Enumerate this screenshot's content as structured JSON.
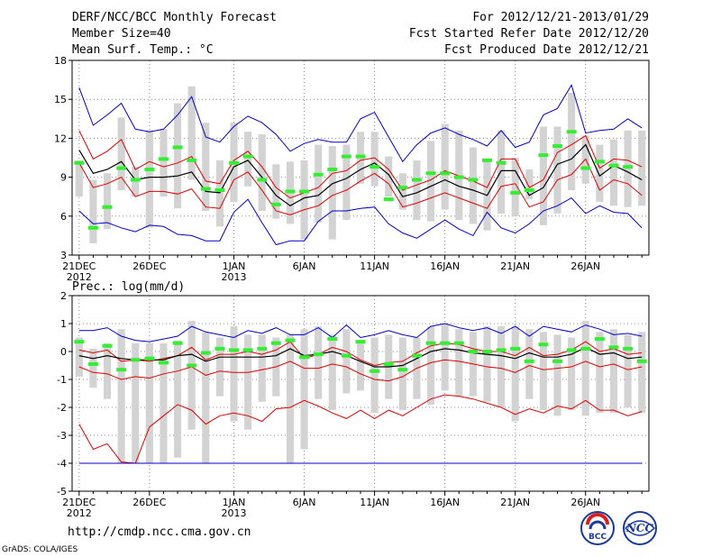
{
  "header": {
    "title": "DERF/NCC/BCC Monthly Forecast",
    "member_size": "Member Size=40",
    "variable": "Mean Surf. Temp.: °C",
    "for_range": "For 2012/12/21-2013/01/29",
    "fcst_started": "Fcst Started Refer Date 2012/12/20",
    "fcst_produced": "Fcst Produced Date 2012/12/21"
  },
  "footer": {
    "url": "http://cmdp.ncc.cma.gov.cn",
    "grads": "GrADS: COLA/IGES",
    "logo_bcc": "BCC",
    "logo_ncc": "NCC"
  },
  "colors": {
    "max": "#0000cc",
    "min": "#0000cc",
    "p_hi": "#dd0000",
    "p_lo": "#dd0000",
    "mean": "#000000",
    "box": "#d3d3d3",
    "obs": "#33ee33",
    "grid": "#888888"
  },
  "chart_data": [
    {
      "type": "line",
      "title": "",
      "ylabel": "Mean Surf. Temp.: °C",
      "ylim": [
        3,
        18
      ],
      "yticks": [
        3,
        6,
        9,
        12,
        15,
        18
      ],
      "ytick_labels": [
        "3",
        "6",
        "9",
        "12",
        "15",
        "18"
      ],
      "xlim": [
        0,
        40
      ],
      "xticks": [
        0,
        5,
        11,
        16,
        21,
        26,
        31,
        36
      ],
      "xtick_labels": [
        "21DEC",
        "26DEC",
        "1JAN",
        "6JAN",
        "11JAN",
        "16JAN",
        "21JAN",
        "26JAN"
      ],
      "xtick_sublabels": [
        "2012",
        "",
        "2013",
        "",
        "",
        "",
        "",
        ""
      ],
      "series": [
        {
          "name": "max",
          "values": [
            15.9,
            13,
            13.8,
            14.7,
            12.7,
            12.5,
            12.7,
            13.8,
            15.2,
            12.1,
            11.7,
            12.9,
            13.7,
            13.2,
            12.3,
            11,
            11.6,
            11.9,
            11.7,
            11.7,
            13.5,
            14,
            12.1,
            10.2,
            11.5,
            12.4,
            12.8,
            12.3,
            11.9,
            11.4,
            12.6,
            11.3,
            11.7,
            13.8,
            14.3,
            16.1,
            12.4,
            12.6,
            12.7,
            13.5,
            12.8
          ]
        },
        {
          "name": "p_hi",
          "values": [
            12.6,
            10.4,
            11,
            11.9,
            9.6,
            10.2,
            9.8,
            10.1,
            10.6,
            8.7,
            8.5,
            10.3,
            11,
            9.8,
            8.2,
            7.4,
            7.8,
            8.2,
            9.3,
            9.5,
            10.3,
            10.5,
            9.6,
            8,
            8.4,
            8.8,
            9.5,
            9.1,
            8.7,
            8.2,
            10.4,
            10.4,
            8.2,
            8.8,
            10.9,
            11.5,
            12.2,
            9.7,
            10.4,
            10.3,
            9.8
          ]
        },
        {
          "name": "mean",
          "values": [
            11.1,
            9.3,
            9.6,
            10.2,
            8.8,
            9,
            9,
            9.1,
            9.4,
            7.9,
            7.8,
            9.8,
            10.3,
            9,
            7.6,
            6.8,
            7.4,
            7.6,
            8.5,
            8.9,
            9.6,
            10.1,
            9.2,
            7.5,
            7.8,
            8.3,
            8.8,
            8.3,
            8,
            7.6,
            9.5,
            9.5,
            7.6,
            8.2,
            10,
            10.4,
            11.5,
            9.1,
            9.9,
            9.4,
            8.8
          ]
        },
        {
          "name": "p_lo",
          "values": [
            10.1,
            8.2,
            8.5,
            9,
            7.5,
            7.9,
            7.9,
            7.7,
            8.1,
            6.7,
            6.6,
            8.8,
            9.4,
            8,
            6.4,
            6.1,
            6.5,
            6.8,
            7.6,
            8,
            8.7,
            9.3,
            8.5,
            6.7,
            7,
            7.4,
            7.8,
            7.4,
            7,
            6.6,
            8.3,
            8.5,
            6.7,
            7.1,
            8.8,
            9.2,
            10.4,
            8,
            8.8,
            8.5,
            7.6
          ]
        },
        {
          "name": "min",
          "values": [
            6.4,
            5.4,
            5.5,
            5.1,
            4.8,
            5.3,
            5.2,
            4.6,
            4.5,
            4.1,
            4.1,
            6.3,
            7.3,
            5.5,
            3.8,
            4.1,
            4.1,
            5.6,
            6.4,
            6.4,
            6.6,
            6.7,
            5.4,
            4.7,
            4.3,
            5,
            5.7,
            5,
            4.5,
            6.3,
            5.1,
            4.7,
            5.4,
            6.4,
            6.8,
            7.4,
            6.2,
            6.8,
            6.3,
            6.2,
            5.1
          ]
        }
      ],
      "boxes": {
        "low": [
          7.5,
          3.9,
          5,
          8,
          7.5,
          5.1,
          7.5,
          6.6,
          8.8,
          6.4,
          5.2,
          7.1,
          8.3,
          6.4,
          5.8,
          5.4,
          4.2,
          5.5,
          4.2,
          5.7,
          8.5,
          8.3,
          7.5,
          6.5,
          5.7,
          5.6,
          6.5,
          5.7,
          5.4,
          4.9,
          6.2,
          6,
          7.3,
          5.3,
          6.2,
          8,
          8.5,
          7.1,
          6.8,
          6.7,
          6.8
        ],
        "high": [
          10.3,
          8.8,
          9.3,
          13.6,
          9.8,
          12.6,
          12.7,
          14.7,
          16,
          13.2,
          10.3,
          13.2,
          12.5,
          12.3,
          10,
          10.2,
          10.3,
          11.5,
          11.4,
          11.5,
          12.5,
          12.5,
          10.6,
          9.3,
          10.3,
          11.8,
          13.1,
          12.6,
          11.3,
          10.2,
          12.6,
          10.5,
          9.6,
          12.9,
          12.9,
          15.5,
          12.2,
          11.5,
          11.9,
          12.6,
          12.6
        ]
      },
      "observed": [
        10.1,
        5.1,
        6.7,
        9.7,
        8.8,
        9.6,
        10.4,
        11.3,
        10.3,
        8.1,
        8,
        10.1,
        10.6,
        8.8,
        6.9,
        7.9,
        7.9,
        9.2,
        9.6,
        10.6,
        10.6,
        9.8,
        7.3,
        8.2,
        8.8,
        9.3,
        9.3,
        9,
        8.8,
        10.3,
        10.1,
        7.8,
        8,
        10.7,
        11.4,
        12.5,
        9.7,
        10.2,
        9.9,
        9.8,
        null
      ]
    },
    {
      "type": "line",
      "title": "",
      "ylabel": "Prec.: log(mm/d)",
      "ylim": [
        -5,
        2
      ],
      "yticks": [
        -5,
        -4,
        -3,
        -2,
        -1,
        0,
        1,
        2
      ],
      "ytick_labels": [
        "-5",
        "-4",
        "-3",
        "-2",
        "-1",
        "0",
        "1",
        "2"
      ],
      "xlim": [
        0,
        40
      ],
      "xticks": [
        0,
        5,
        11,
        16,
        21,
        26,
        31,
        36
      ],
      "xtick_labels": [
        "21DEC",
        "26DEC",
        "1JAN",
        "6JAN",
        "11JAN",
        "16JAN",
        "21JAN",
        "26JAN"
      ],
      "xtick_sublabels": [
        "2012",
        "",
        "2013",
        "",
        "",
        "",
        "",
        ""
      ],
      "series": [
        {
          "name": "max",
          "values": [
            0.75,
            0.75,
            0.85,
            0.55,
            0.4,
            0.35,
            0.45,
            0.55,
            0.9,
            0.7,
            0.6,
            0.5,
            0.75,
            0.65,
            0.85,
            0.6,
            0.6,
            0.85,
            0.5,
            0.95,
            0.5,
            0.6,
            0.75,
            0.6,
            0.5,
            0.9,
            1,
            0.85,
            0.75,
            0.85,
            0.65,
            0.9,
            0.55,
            0.9,
            0.8,
            0.7,
            0.95,
            0.8,
            0.6,
            0.65,
            0.55
          ]
        },
        {
          "name": "p_hi",
          "values": [
            0.05,
            -0.05,
            0.05,
            -0.35,
            -0.3,
            -0.35,
            -0.25,
            -0.15,
            0.15,
            -0.3,
            -0.1,
            -0.1,
            0,
            -0.1,
            0.05,
            0.35,
            -0.25,
            -0.1,
            0.15,
            0,
            -0.3,
            -0.5,
            -0.4,
            -0.35,
            -0.05,
            0.2,
            0.3,
            0.25,
            0.1,
            0,
            0,
            -0.15,
            0.15,
            -0.15,
            -0.1,
            0.05,
            0.35,
            0,
            0.1,
            -0.1,
            -0.05
          ]
        },
        {
          "name": "mean",
          "values": [
            -0.15,
            -0.25,
            -0.15,
            -0.25,
            -0.3,
            -0.3,
            -0.3,
            -0.15,
            -0.1,
            -0.35,
            -0.2,
            -0.2,
            -0.2,
            -0.2,
            -0.15,
            0.1,
            -0.15,
            -0.1,
            0,
            -0.15,
            -0.35,
            -0.55,
            -0.55,
            -0.5,
            -0.25,
            0,
            0.1,
            0.05,
            -0.05,
            -0.1,
            -0.15,
            -0.25,
            -0.05,
            -0.2,
            -0.2,
            -0.1,
            0.15,
            -0.1,
            -0.05,
            -0.25,
            -0.2
          ]
        },
        {
          "name": "p_lo",
          "values": [
            -0.55,
            -0.75,
            -0.8,
            -1,
            -0.9,
            -0.95,
            -0.8,
            -0.7,
            -0.55,
            -0.85,
            -0.7,
            -0.75,
            -0.75,
            -0.65,
            -0.55,
            -0.35,
            -0.6,
            -0.6,
            -0.45,
            -0.55,
            -0.8,
            -1,
            -1.05,
            -0.9,
            -0.6,
            -0.4,
            -0.3,
            -0.35,
            -0.45,
            -0.55,
            -0.6,
            -0.75,
            -0.5,
            -0.65,
            -0.6,
            -0.55,
            -0.35,
            -0.55,
            -0.45,
            -0.65,
            -0.55
          ]
        },
        {
          "name": "p_lo2",
          "values": [
            -2.6,
            -3.5,
            -3.3,
            -3.95,
            -4,
            -2.7,
            -2.3,
            -1.9,
            -2.1,
            -2.6,
            -2.3,
            -2.2,
            -2.3,
            -2.5,
            -2.05,
            -2,
            -1.75,
            -1.95,
            -2.2,
            -2.4,
            -2.1,
            -2.4,
            -2.1,
            -2.3,
            -2,
            -1.7,
            -1.55,
            -1.6,
            -1.7,
            -1.85,
            -2,
            -2.25,
            -2.05,
            -2.2,
            -1.95,
            -2.05,
            -1.75,
            -2.1,
            -2.1,
            -2.3,
            -2.15
          ]
        },
        {
          "name": "min",
          "values": [
            -4,
            -4,
            -4,
            -4,
            -4,
            -4,
            -4,
            -4,
            -4,
            -4,
            -4,
            -4,
            -4,
            -4,
            -4,
            -4,
            -4,
            -4,
            -4,
            -4,
            -4,
            -4,
            -4,
            -4,
            -4,
            -4,
            -4,
            -4,
            -4,
            -4,
            -4,
            -4,
            -4,
            -4,
            -4,
            -4,
            -4,
            -4,
            -4,
            -4,
            -4
          ]
        }
      ],
      "boxes": {
        "low": [
          -0.9,
          -1.3,
          -1.7,
          -4,
          -4,
          -4,
          -4,
          -3.8,
          -2.8,
          -4,
          -1.6,
          -2.5,
          -2.8,
          -1.8,
          -1.6,
          -4,
          -3.5,
          -1.7,
          -2.1,
          -1.5,
          -1.4,
          -2.2,
          -1.7,
          -2.1,
          -1.7,
          -1.9,
          -1.4,
          -1.6,
          -1.6,
          -1.8,
          -2,
          -2.5,
          -1.7,
          -2.1,
          -2.3,
          -2.1,
          -2.3,
          -2.2,
          -2.2,
          -2,
          -2.2
        ],
        "high": [
          0.5,
          0.1,
          0.3,
          0.8,
          0.3,
          0.3,
          0.3,
          0.4,
          1.1,
          0.7,
          0.5,
          0.9,
          0.6,
          0.6,
          0.5,
          0.6,
          0.8,
          0.9,
          0.6,
          0.8,
          0.4,
          0.5,
          0.6,
          0.5,
          0.5,
          0.9,
          1,
          0.8,
          0.7,
          0.9,
          0.9,
          0.9,
          0.8,
          0.7,
          0.6,
          0.5,
          1.1,
          0.7,
          0.8,
          0.6,
          0.7
        ]
      },
      "observed": [
        0.35,
        -0.45,
        0.2,
        -0.65,
        -0.3,
        -0.25,
        -0.4,
        0.3,
        -0.5,
        -0.05,
        0.1,
        0.05,
        0.05,
        0.1,
        0.3,
        0.4,
        -0.2,
        -0.1,
        0.45,
        -0.15,
        0.35,
        -0.7,
        -0.45,
        -0.65,
        -0.15,
        0.3,
        0.3,
        0.3,
        0,
        0,
        0.05,
        0.1,
        -0.35,
        0.25,
        -0.35,
        0.05,
        0.1,
        0.45,
        0.15,
        0.1,
        -0.35
      ]
    }
  ]
}
